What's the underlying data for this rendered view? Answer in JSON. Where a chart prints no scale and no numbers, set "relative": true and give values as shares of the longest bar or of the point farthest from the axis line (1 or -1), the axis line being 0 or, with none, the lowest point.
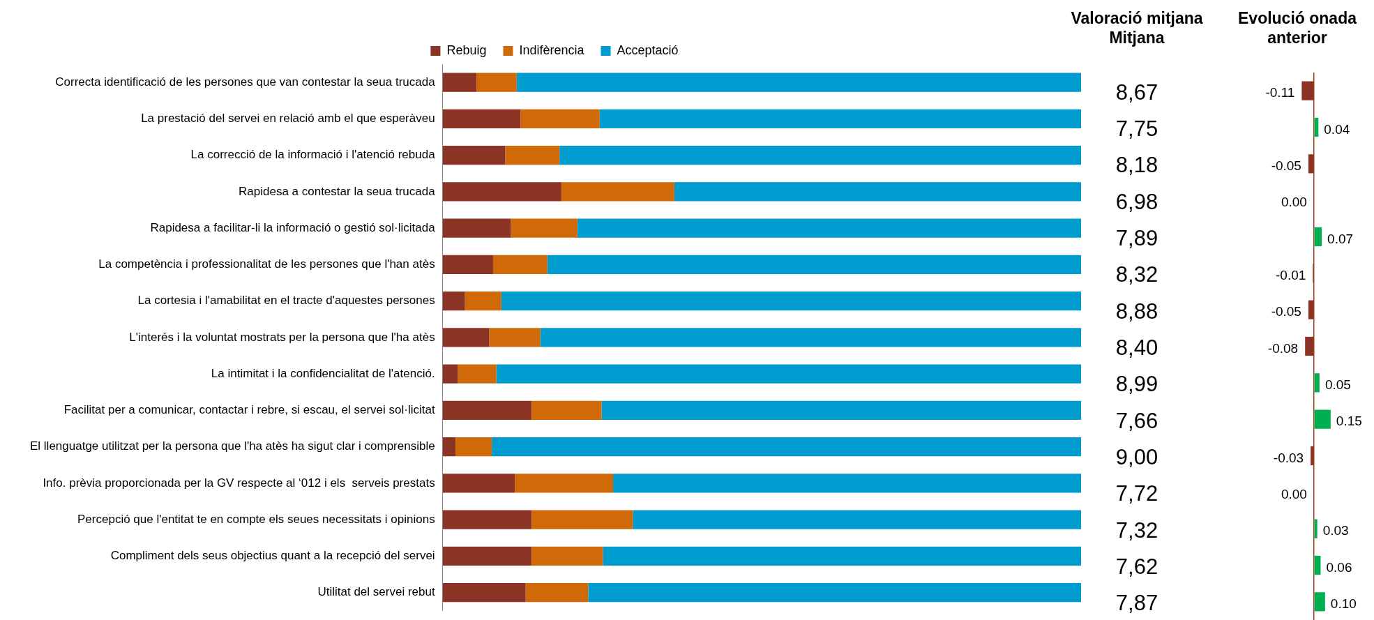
{
  "chart_data": [
    {
      "type": "bar",
      "orientation": "horizontal",
      "stacked": true,
      "relative": true,
      "legend": "top",
      "categories": [
        "Correcta identificació de les persones que van contestar la seua trucada",
        "La prestació del servei en relació amb el que esperàveu",
        "La correcció de la informació i l'atenció rebuda",
        "Rapidesa a contestar la seua trucada",
        "Rapidesa a facilitar-li la informació o gestió sol·licitada",
        "La competència i professionalitat de les persones que l'han atès",
        "La cortesia i l'amabilitat en el tracte d'aquestes persones",
        "L'interés i la voluntat mostrats per la persona que l'ha atès",
        "La intimitat i la confidencialitat de l'atenció.",
        "Facilitat per a comunicar, contactar i rebre, si escau, el servei sol·licitat",
        "El llenguatge utilitzat per la persona que l'ha atès ha sigut clar i comprensible",
        "Info. prèvia proporcionada per la GV respecte al ‘012 i els  serveis prestats",
        "Percepció que l'entitat te en compte els seues necessitats i opinions",
        "Compliment dels seus objectius quant a la recepció del servei",
        "Utilitat del servei rebut"
      ],
      "series": [
        {
          "name": "Rebuig",
          "color": "#8b3324",
          "values": [
            0.053,
            0.122,
            0.098,
            0.186,
            0.107,
            0.079,
            0.035,
            0.073,
            0.024,
            0.139,
            0.02,
            0.113,
            0.139,
            0.139,
            0.13
          ]
        },
        {
          "name": "Indifèrencia",
          "color": "#d06a08",
          "values": [
            0.063,
            0.124,
            0.085,
            0.177,
            0.104,
            0.085,
            0.057,
            0.08,
            0.06,
            0.11,
            0.057,
            0.154,
            0.159,
            0.112,
            0.098
          ]
        },
        {
          "name": "Acceptació",
          "color": "#009bcf",
          "values": [
            0.884,
            0.754,
            0.817,
            0.637,
            0.789,
            0.836,
            0.908,
            0.847,
            0.916,
            0.751,
            0.923,
            0.733,
            0.702,
            0.749,
            0.772
          ]
        }
      ]
    },
    {
      "type": "other",
      "title": "Valoració mitjana",
      "subtitle": "Mitjana",
      "categories": [
        null,
        null,
        null,
        null,
        null,
        null,
        null,
        null,
        null,
        null,
        null,
        null,
        null,
        null,
        null
      ],
      "values": [
        8.67,
        7.75,
        8.18,
        6.98,
        7.89,
        8.32,
        8.88,
        8.4,
        8.99,
        7.66,
        9.0,
        7.72,
        7.32,
        7.62,
        7.87
      ],
      "value_labels": [
        "8,67",
        "7,75",
        "8,18",
        "6,98",
        "7,89",
        "8,32",
        "8,88",
        "8,40",
        "8,99",
        "7,66",
        "9,00",
        "7,72",
        "7,32",
        "7,62",
        "7,87"
      ]
    },
    {
      "type": "bar",
      "orientation": "horizontal",
      "title": "Evolució onada anterior",
      "ref_lines": [
        {
          "axis": "x",
          "value": 0,
          "color": "#a0401c"
        }
      ],
      "categories": [
        null,
        null,
        null,
        null,
        null,
        null,
        null,
        null,
        null,
        null,
        null,
        null,
        null,
        null,
        null
      ],
      "values": [
        -0.11,
        0.04,
        -0.05,
        0.0,
        0.07,
        -0.01,
        -0.05,
        -0.08,
        0.05,
        0.15,
        -0.03,
        0.0,
        0.03,
        0.06,
        0.1
      ],
      "colors": [
        "#8b3324",
        "#00b050",
        "#8b3324",
        "#8b3324",
        "#00b050",
        "#8b3324",
        "#8b3324",
        "#8b3324",
        "#00b050",
        "#00b050",
        "#8b3324",
        "#8b3324",
        "#00b050",
        "#00b050",
        "#00b050"
      ],
      "value_labels": [
        "-0.11",
        "0.04",
        "-0.05",
        "0.00",
        "0.07",
        "-0.01",
        "-0.05",
        "-0.08",
        "0.05",
        "0.15",
        "-0.03",
        "0.00",
        "0.03",
        "0.06",
        "0.10"
      ]
    }
  ]
}
